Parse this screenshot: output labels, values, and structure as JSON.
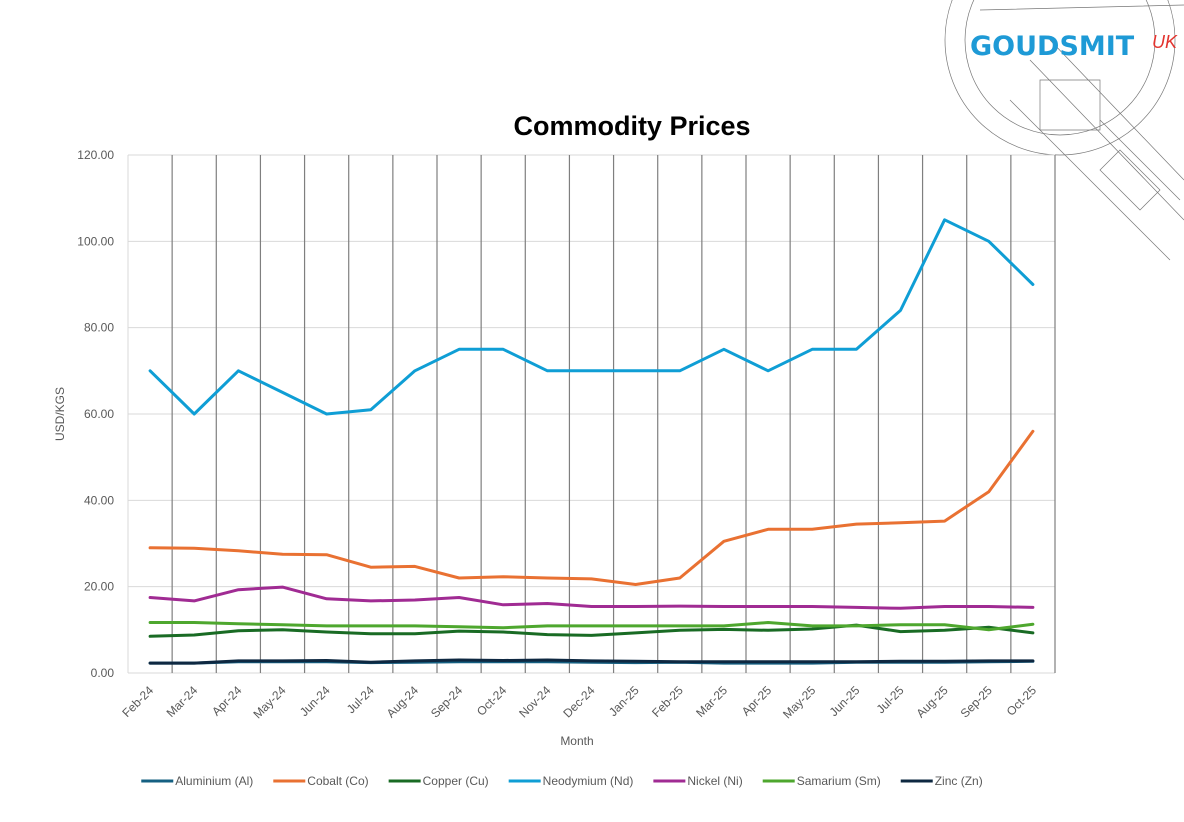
{
  "logo": {
    "name": "GOUDSMIT",
    "suffix": "UK"
  },
  "chart_data": {
    "type": "line",
    "title": "Commodity Prices",
    "x_label": "Month",
    "y_label": "USD/KGS",
    "categories": [
      "Feb-24",
      "Mar-24",
      "Apr-24",
      "May-24",
      "Jun-24",
      "Jul-24",
      "Aug-24",
      "Sep-24",
      "Oct-24",
      "Nov-24",
      "Dec-24",
      "Jan-25",
      "Feb-25",
      "Mar-25",
      "Apr-25",
      "May-25",
      "Jun-25",
      "Jul-25",
      "Aug-25",
      "Sep-25",
      "Oct-25"
    ],
    "ylim": [
      0,
      120
    ],
    "yticks": [
      {
        "value": 0,
        "label": "0.00"
      },
      {
        "value": 20,
        "label": "20.00"
      },
      {
        "value": 40,
        "label": "40.00"
      },
      {
        "value": 60,
        "label": "60.00"
      },
      {
        "value": 80,
        "label": "80.00"
      },
      {
        "value": 100,
        "label": "100.00"
      },
      {
        "value": 120,
        "label": "120.00"
      }
    ],
    "grid": true,
    "legend": "bottom",
    "series": [
      {
        "name": "Aluminium (Al)",
        "color": "#156082",
        "values": [
          2.3,
          2.3,
          2.6,
          2.6,
          2.6,
          2.4,
          2.5,
          2.6,
          2.6,
          2.6,
          2.5,
          2.4,
          2.5,
          2.3,
          2.3,
          2.3,
          2.5,
          2.5,
          2.5,
          2.6,
          2.7
        ]
      },
      {
        "name": "Cobalt (Co)",
        "color": "#e97132",
        "values": [
          29,
          28.9,
          28.3,
          27.5,
          27.4,
          24.5,
          24.7,
          22,
          22.3,
          22,
          21.8,
          20.5,
          22,
          30.5,
          33.3,
          33.3,
          34.5,
          34.8,
          35.2,
          42,
          56
        ]
      },
      {
        "name": "Copper (Cu)",
        "color": "#196b24",
        "values": [
          8.5,
          8.8,
          9.8,
          10,
          9.5,
          9.1,
          9.1,
          9.7,
          9.5,
          8.9,
          8.7,
          9.3,
          9.9,
          10.1,
          9.9,
          10.2,
          11.1,
          9.6,
          9.9,
          10.6,
          9.3
        ]
      },
      {
        "name": "Neodymium (Nd)",
        "color": "#0f9ed5",
        "values": [
          70,
          60,
          70,
          65,
          60,
          61,
          70,
          75,
          75,
          70,
          70,
          70,
          70,
          75,
          70,
          75,
          75,
          84,
          105,
          100,
          90
        ]
      },
      {
        "name": "Nickel (Ni)",
        "color": "#a02b93",
        "values": [
          17.5,
          16.7,
          19.3,
          19.9,
          17.2,
          16.7,
          16.9,
          17.5,
          15.8,
          16.1,
          15.4,
          15.4,
          15.5,
          15.4,
          15.4,
          15.4,
          15.2,
          15,
          15.4,
          15.4,
          15.2
        ]
      },
      {
        "name": "Samarium (Sm)",
        "color": "#4ea72e",
        "values": [
          11.7,
          11.7,
          11.4,
          11.2,
          10.9,
          10.9,
          10.9,
          10.7,
          10.5,
          10.9,
          10.9,
          10.9,
          10.9,
          10.9,
          11.7,
          10.9,
          10.9,
          11.2,
          11.2,
          10,
          11.3
        ]
      },
      {
        "name": "Zinc (Zn)",
        "color": "#0e2841",
        "values": [
          2.3,
          2.3,
          2.8,
          2.8,
          2.9,
          2.5,
          2.8,
          3,
          2.9,
          3,
          2.8,
          2.7,
          2.6,
          2.6,
          2.6,
          2.6,
          2.6,
          2.7,
          2.7,
          2.8,
          2.8
        ]
      }
    ]
  }
}
